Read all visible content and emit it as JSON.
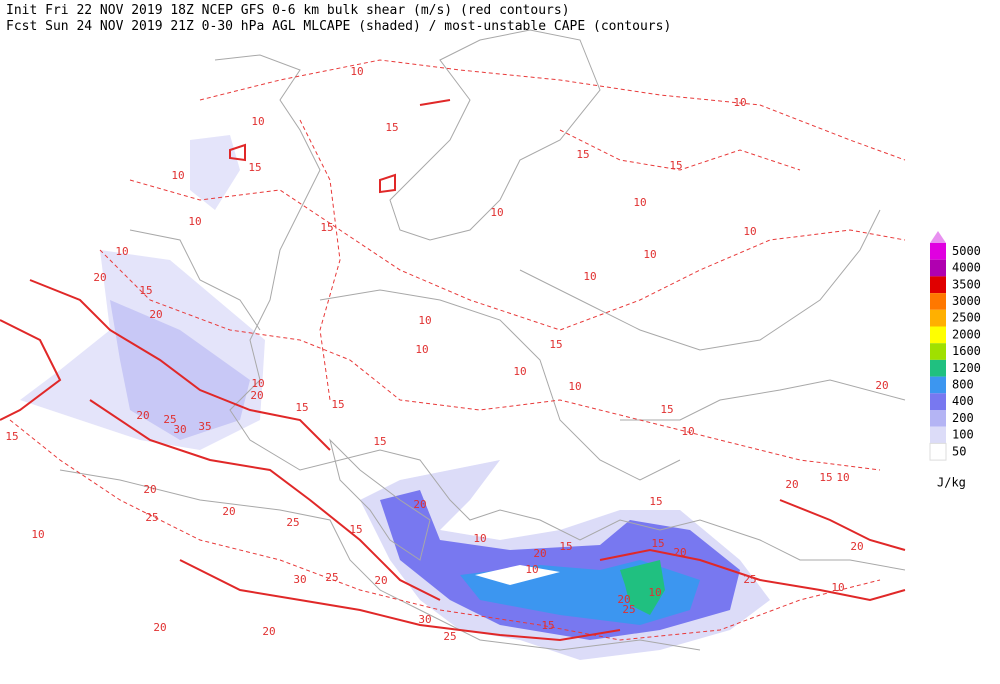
{
  "header": {
    "line1": "Init  Fri 22 NOV 2019 18Z  NCEP GFS 0-6 km bulk shear (m/s) (red contours)",
    "line2": "Fcst Sun 24 NOV 2019 21Z  0-30 hPa AGL MLCAPE (shaded) / most-unstable CAPE (contours)"
  },
  "legend": {
    "levels": [
      {
        "label": "5000",
        "color": "#e000e0"
      },
      {
        "label": "4000",
        "color": "#b000b0"
      },
      {
        "label": "3500",
        "color": "#e00000"
      },
      {
        "label": "3000",
        "color": "#ff7800"
      },
      {
        "label": "2500",
        "color": "#ffb000"
      },
      {
        "label": "2000",
        "color": "#ffff00"
      },
      {
        "label": "1600",
        "color": "#a0e000"
      },
      {
        "label": "1200",
        "color": "#20c080"
      },
      {
        "label": "800",
        "color": "#3c96f0"
      },
      {
        "label": "400",
        "color": "#7878f0"
      },
      {
        "label": "200",
        "color": "#b4b4f4"
      },
      {
        "label": "100",
        "color": "#dcdcf8"
      },
      {
        "label": "50",
        "color": "#ffffff"
      }
    ],
    "top_color": "#e890f0",
    "unit": "J/kg"
  },
  "contour_labels": [
    10,
    10,
    15,
    10,
    10,
    15,
    15,
    15,
    10,
    10,
    15,
    10,
    10,
    15,
    20,
    20,
    10,
    10,
    10,
    10,
    15,
    10,
    10,
    10,
    15,
    20,
    10,
    20,
    15,
    15,
    20,
    25,
    30,
    35,
    15,
    10,
    15,
    20,
    20,
    15,
    10,
    10,
    25,
    20,
    25,
    15,
    25,
    20,
    30,
    20,
    15,
    20,
    10,
    10,
    20,
    25,
    20,
    10,
    25,
    15,
    25,
    20,
    20,
    30,
    10,
    15,
    15,
    20
  ]
}
